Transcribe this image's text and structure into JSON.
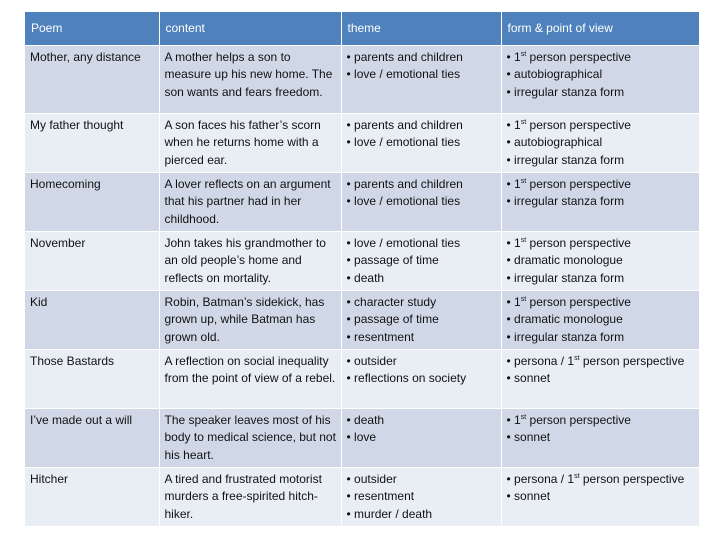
{
  "headers": {
    "poem": "Poem",
    "content": "content",
    "theme": "theme",
    "form": "form & point of view"
  },
  "bullet": "•",
  "rows": [
    {
      "poem": "Mother, any distance",
      "content": "A mother helps a son to measure up his new home. The son wants and fears freedom.",
      "theme": [
        "parents and children",
        "love / emotional ties"
      ],
      "form": [
        {
          "pre": "1",
          "sup": "st",
          "post": " person perspective"
        },
        {
          "pre": "autobiographical",
          "sup": "",
          "post": ""
        },
        {
          "pre": "irregular stanza form",
          "sup": "",
          "post": ""
        }
      ]
    },
    {
      "poem": "My father thought",
      "content": "A son faces his father’s scorn when he returns home with a pierced ear.",
      "theme": [
        "parents and children",
        "love / emotional ties"
      ],
      "form": [
        {
          "pre": "1",
          "sup": "st",
          "post": " person perspective"
        },
        {
          "pre": "autobiographical",
          "sup": "",
          "post": ""
        },
        {
          "pre": "irregular stanza form",
          "sup": "",
          "post": ""
        }
      ]
    },
    {
      "poem": "Homecoming",
      "content": "A lover reflects on an argument that his partner had in her childhood.",
      "theme": [
        "parents and children",
        "love / emotional ties"
      ],
      "form": [
        {
          "pre": "1",
          "sup": "st",
          "post": " person perspective"
        },
        {
          "pre": "irregular stanza form",
          "sup": "",
          "post": ""
        }
      ]
    },
    {
      "poem": "November",
      "content": "John takes his grandmother to an old people’s home and reflects on mortality.",
      "theme": [
        "love / emotional ties",
        "passage of time",
        "death"
      ],
      "form": [
        {
          "pre": "1",
          "sup": "st",
          "post": " person perspective"
        },
        {
          "pre": "dramatic monologue",
          "sup": "",
          "post": ""
        },
        {
          "pre": "irregular stanza form",
          "sup": "",
          "post": ""
        }
      ]
    },
    {
      "poem": "Kid",
      "content": "Robin, Batman’s sidekick, has grown up, while Batman has grown old.",
      "theme": [
        "character study",
        "passage of time",
        "resentment"
      ],
      "form": [
        {
          "pre": "1",
          "sup": "st",
          "post": " person perspective"
        },
        {
          "pre": "dramatic monologue",
          "sup": "",
          "post": ""
        },
        {
          "pre": "irregular stanza form",
          "sup": "",
          "post": ""
        }
      ]
    },
    {
      "poem": "Those Bastards",
      "content": "A reflection on social inequality from the point of view of a rebel.",
      "theme": [
        "outsider",
        "reflections on society"
      ],
      "form": [
        {
          "pre": "persona / 1",
          "sup": "st",
          "post": " person perspective"
        },
        {
          "pre": "sonnet",
          "sup": "",
          "post": ""
        }
      ]
    },
    {
      "poem": "I’ve made out a will",
      "content": "The speaker leaves most of his body to medical science, but not his heart.",
      "theme": [
        "death",
        "love"
      ],
      "form": [
        {
          "pre": "1",
          "sup": "st",
          "post": " person perspective"
        },
        {
          "pre": "sonnet",
          "sup": "",
          "post": ""
        }
      ]
    },
    {
      "poem": "Hitcher",
      "content": "A tired and frustrated motorist murders a free-spirited hitch-hiker.",
      "theme": [
        "outsider",
        "resentment",
        "murder / death"
      ],
      "form": [
        {
          "pre": "persona / 1",
          "sup": "st",
          "post": " person perspective"
        },
        {
          "pre": "sonnet",
          "sup": "",
          "post": ""
        }
      ]
    }
  ]
}
